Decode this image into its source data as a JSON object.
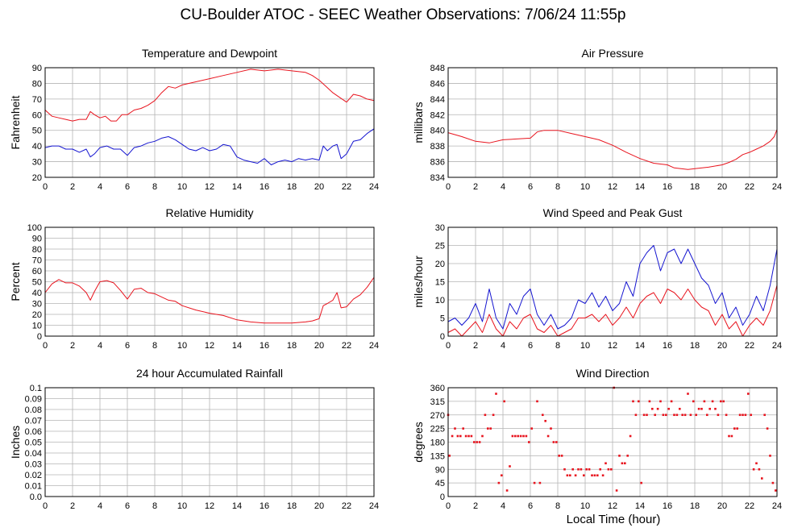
{
  "page": {
    "title": "CU-Boulder ATOC - SEEC Weather Observations: 7/06/24 11:55p",
    "x_axis_label": "Local Time (hour)"
  },
  "colors": {
    "red": "#e8141e",
    "blue": "#1515d0",
    "grid": "#b4b4b4"
  },
  "chart_data": [
    {
      "id": "temp",
      "type": "line",
      "title": "Temperature and Dewpoint",
      "xlabel": "",
      "ylabel": "Fahrenheit",
      "xlim": [
        0,
        24
      ],
      "ylim": [
        20,
        90
      ],
      "x_ticks": [
        0,
        2,
        4,
        6,
        8,
        10,
        12,
        14,
        16,
        18,
        20,
        22,
        24
      ],
      "y_ticks": [
        20,
        30,
        40,
        50,
        60,
        70,
        80,
        90
      ],
      "grid": true,
      "series": [
        {
          "color": "#e8141e",
          "x": [
            0,
            0.5,
            1,
            1.5,
            2,
            2.5,
            3,
            3.3,
            3.6,
            4,
            4.4,
            4.8,
            5.2,
            5.6,
            6,
            6.5,
            7,
            7.5,
            8,
            8.5,
            9,
            9.5,
            10,
            11,
            12,
            13,
            14,
            15,
            16,
            17,
            18,
            19,
            19.5,
            20,
            20.5,
            21,
            21.5,
            22,
            22.5,
            23,
            23.5,
            24
          ],
          "y": [
            63,
            59,
            58,
            57,
            56,
            57,
            57,
            62,
            60,
            58,
            59,
            56,
            56,
            60,
            60,
            63,
            64,
            66,
            69,
            74,
            78,
            77,
            79,
            81,
            83,
            85,
            87,
            89,
            88,
            89,
            88,
            87,
            85,
            82,
            78,
            74,
            71,
            68,
            73,
            72,
            70,
            69
          ]
        },
        {
          "color": "#1515d0",
          "x": [
            0,
            0.5,
            1,
            1.5,
            2,
            2.5,
            3,
            3.3,
            3.6,
            4,
            4.5,
            5,
            5.5,
            6,
            6.5,
            7,
            7.5,
            8,
            8.5,
            9,
            9.5,
            10,
            10.5,
            11,
            11.5,
            12,
            12.5,
            13,
            13.5,
            14,
            14.5,
            15,
            15.5,
            16,
            16.5,
            17,
            17.5,
            18,
            18.5,
            19,
            19.5,
            20,
            20.3,
            20.6,
            21,
            21.3,
            21.6,
            22,
            22.5,
            23,
            23.5,
            24
          ],
          "y": [
            39,
            40,
            40,
            38,
            38,
            36,
            38,
            33,
            35,
            39,
            40,
            38,
            38,
            34,
            39,
            40,
            42,
            43,
            45,
            46,
            44,
            41,
            38,
            37,
            39,
            37,
            38,
            41,
            40,
            33,
            31,
            30,
            29,
            32,
            28,
            30,
            31,
            30,
            32,
            31,
            32,
            31,
            40,
            37,
            40,
            41,
            32,
            35,
            43,
            44,
            48,
            51
          ]
        }
      ]
    },
    {
      "id": "pressure",
      "type": "line",
      "title": "Air Pressure",
      "xlabel": "",
      "ylabel": "millibars",
      "xlim": [
        0,
        24
      ],
      "ylim": [
        834,
        848
      ],
      "x_ticks": [
        0,
        2,
        4,
        6,
        8,
        10,
        12,
        14,
        16,
        18,
        20,
        22,
        24
      ],
      "y_ticks": [
        834,
        836,
        838,
        840,
        842,
        844,
        846,
        848
      ],
      "grid": true,
      "series": [
        {
          "color": "#e8141e",
          "x": [
            0,
            1,
            2,
            3,
            4,
            5,
            6,
            6.5,
            7,
            8,
            9,
            10,
            11,
            12,
            13,
            14,
            15,
            16,
            16.5,
            17,
            17.5,
            18,
            19,
            20,
            20.5,
            21,
            21.5,
            22,
            22.5,
            23,
            23.5,
            23.8,
            24
          ],
          "y": [
            839.7,
            839.2,
            838.6,
            838.4,
            838.8,
            838.9,
            839.0,
            839.8,
            840.0,
            840.0,
            839.6,
            839.2,
            838.8,
            838.1,
            837.2,
            836.4,
            835.8,
            835.6,
            835.2,
            835.1,
            835.0,
            835.1,
            835.3,
            835.6,
            835.9,
            836.3,
            836.9,
            837.2,
            837.6,
            838.0,
            838.6,
            839.2,
            840.1
          ]
        }
      ]
    },
    {
      "id": "humidity",
      "type": "line",
      "title": "Relative Humidity",
      "xlabel": "",
      "ylabel": "Percent",
      "xlim": [
        0,
        24
      ],
      "ylim": [
        0,
        100
      ],
      "x_ticks": [
        0,
        2,
        4,
        6,
        8,
        10,
        12,
        14,
        16,
        18,
        20,
        22,
        24
      ],
      "y_ticks": [
        0,
        10,
        20,
        30,
        40,
        50,
        60,
        70,
        80,
        90,
        100
      ],
      "grid": true,
      "series": [
        {
          "color": "#e8141e",
          "x": [
            0,
            0.5,
            1,
            1.5,
            2,
            2.5,
            3,
            3.3,
            3.6,
            4,
            4.5,
            5,
            5.5,
            6,
            6.5,
            7,
            7.5,
            8,
            8.5,
            9,
            9.5,
            10,
            11,
            12,
            13,
            14,
            15,
            16,
            17,
            18,
            19,
            19.5,
            20,
            20.3,
            20.6,
            21,
            21.3,
            21.6,
            22,
            22.5,
            23,
            23.5,
            24
          ],
          "y": [
            40,
            48,
            52,
            49,
            49,
            46,
            40,
            33,
            41,
            50,
            51,
            49,
            42,
            34,
            43,
            44,
            40,
            39,
            36,
            33,
            32,
            28,
            24,
            21,
            19,
            15,
            13,
            12,
            12,
            12,
            13,
            14,
            16,
            28,
            30,
            33,
            40,
            26,
            27,
            34,
            38,
            45,
            54
          ]
        }
      ]
    },
    {
      "id": "wind",
      "type": "line",
      "title": "Wind Speed and Peak Gust",
      "xlabel": "",
      "ylabel": "miles/hour",
      "xlim": [
        0,
        24
      ],
      "ylim": [
        0,
        30
      ],
      "x_ticks": [
        0,
        2,
        4,
        6,
        8,
        10,
        12,
        14,
        16,
        18,
        20,
        22,
        24
      ],
      "y_ticks": [
        0,
        5,
        10,
        15,
        20,
        25,
        30
      ],
      "grid": true,
      "series": [
        {
          "color": "#1515d0",
          "x": [
            0,
            0.5,
            1,
            1.5,
            2,
            2.5,
            3,
            3.5,
            4,
            4.5,
            5,
            5.5,
            6,
            6.5,
            7,
            7.5,
            8,
            8.5,
            9,
            9.5,
            10,
            10.5,
            11,
            11.5,
            12,
            12.5,
            13,
            13.5,
            14,
            14.5,
            15,
            15.5,
            16,
            16.5,
            17,
            17.5,
            18,
            18.5,
            19,
            19.5,
            20,
            20.5,
            21,
            21.5,
            22,
            22.5,
            23,
            23.5,
            24
          ],
          "y": [
            4,
            5,
            3,
            5,
            9,
            4,
            13,
            5,
            2,
            9,
            6,
            11,
            13,
            6,
            3,
            6,
            2,
            3,
            5,
            10,
            9,
            12,
            8,
            11,
            7,
            9,
            15,
            11,
            20,
            23,
            25,
            18,
            23,
            24,
            20,
            24,
            20,
            16,
            14,
            9,
            12,
            5,
            8,
            3,
            6,
            11,
            7,
            14,
            24
          ]
        },
        {
          "color": "#e8141e",
          "x": [
            0,
            0.5,
            1,
            1.5,
            2,
            2.5,
            3,
            3.5,
            4,
            4.5,
            5,
            5.5,
            6,
            6.5,
            7,
            7.5,
            8,
            8.5,
            9,
            9.5,
            10,
            10.5,
            11,
            11.5,
            12,
            12.5,
            13,
            13.5,
            14,
            14.5,
            15,
            15.5,
            16,
            16.5,
            17,
            17.5,
            18,
            18.5,
            19,
            19.5,
            20,
            20.5,
            21,
            21.5,
            22,
            22.5,
            23,
            23.5,
            24
          ],
          "y": [
            1,
            2,
            0,
            2,
            4,
            1,
            6,
            2,
            0,
            4,
            2,
            5,
            6,
            2,
            1,
            3,
            0,
            1,
            2,
            5,
            5,
            6,
            4,
            6,
            3,
            5,
            8,
            5,
            9,
            11,
            12,
            9,
            13,
            12,
            10,
            13,
            10,
            8,
            7,
            3,
            6,
            2,
            4,
            0,
            3,
            5,
            3,
            7,
            14
          ]
        }
      ]
    },
    {
      "id": "rain",
      "type": "line",
      "title": "24 hour Accumulated Rainfall",
      "xlabel": "",
      "ylabel": "Inches",
      "xlim": [
        0,
        24
      ],
      "ylim": [
        0,
        0.1
      ],
      "x_ticks": [
        0,
        2,
        4,
        6,
        8,
        10,
        12,
        14,
        16,
        18,
        20,
        22,
        24
      ],
      "y_ticks": [
        "0.0",
        "0.01",
        "0.02",
        "0.03",
        "0.04",
        "0.05",
        "0.06",
        "0.07",
        "0.08",
        "0.09",
        "0.1"
      ],
      "grid": true,
      "series": [
        {
          "color": "#e8141e",
          "x": [
            0,
            24
          ],
          "y": [
            0,
            0
          ]
        }
      ]
    },
    {
      "id": "direction",
      "type": "scatter",
      "title": "Wind Direction",
      "xlabel": "Local Time (hour)",
      "ylabel": "degrees",
      "xlim": [
        0,
        24
      ],
      "ylim": [
        0,
        360
      ],
      "x_ticks": [
        0,
        2,
        4,
        6,
        8,
        10,
        12,
        14,
        16,
        18,
        20,
        22,
        24
      ],
      "y_ticks": [
        0,
        45,
        90,
        135,
        180,
        225,
        270,
        315,
        360
      ],
      "grid": true,
      "series": [
        {
          "color": "#e8141e",
          "x": [
            0,
            0.1,
            0.3,
            0.5,
            0.7,
            0.9,
            1.1,
            1.3,
            1.5,
            1.7,
            1.9,
            2.1,
            2.3,
            2.5,
            2.7,
            2.9,
            3.1,
            3.3,
            3.5,
            3.7,
            3.9,
            4.1,
            4.3,
            4.5,
            4.7,
            4.9,
            5.1,
            5.3,
            5.5,
            5.7,
            5.9,
            6.1,
            6.3,
            6.5,
            6.7,
            6.9,
            7.1,
            7.3,
            7.5,
            7.7,
            7.9,
            8.1,
            8.3,
            8.5,
            8.7,
            8.9,
            9.1,
            9.3,
            9.5,
            9.7,
            9.9,
            10.1,
            10.3,
            10.5,
            10.7,
            10.9,
            11.1,
            11.3,
            11.5,
            11.7,
            11.9,
            12.1,
            12.3,
            12.5,
            12.7,
            12.9,
            13.1,
            13.3,
            13.5,
            13.7,
            13.9,
            14.1,
            14.3,
            14.5,
            14.7,
            14.9,
            15.1,
            15.3,
            15.5,
            15.7,
            15.9,
            16.1,
            16.3,
            16.5,
            16.7,
            16.9,
            17.1,
            17.3,
            17.5,
            17.7,
            17.9,
            18.1,
            18.3,
            18.5,
            18.7,
            18.9,
            19.1,
            19.3,
            19.5,
            19.7,
            19.9,
            20.1,
            20.3,
            20.5,
            20.7,
            20.9,
            21.1,
            21.3,
            21.5,
            21.7,
            21.9,
            22.1,
            22.3,
            22.5,
            22.7,
            22.9,
            23.1,
            23.3,
            23.5,
            23.7,
            23.9
          ],
          "y": [
            270,
            135,
            200,
            225,
            200,
            200,
            225,
            200,
            200,
            200,
            180,
            180,
            180,
            200,
            270,
            225,
            225,
            270,
            340,
            45,
            70,
            315,
            20,
            100,
            200,
            200,
            200,
            200,
            200,
            200,
            180,
            225,
            45,
            315,
            45,
            270,
            250,
            200,
            225,
            180,
            180,
            135,
            135,
            90,
            70,
            70,
            90,
            70,
            90,
            90,
            70,
            90,
            90,
            70,
            70,
            70,
            90,
            70,
            110,
            90,
            90,
            360,
            20,
            135,
            110,
            110,
            135,
            200,
            315,
            270,
            315,
            45,
            270,
            270,
            315,
            290,
            270,
            290,
            315,
            270,
            270,
            290,
            315,
            270,
            270,
            290,
            270,
            270,
            340,
            270,
            315,
            270,
            290,
            290,
            315,
            270,
            290,
            315,
            290,
            270,
            315,
            315,
            270,
            200,
            200,
            225,
            225,
            270,
            270,
            270,
            340,
            270,
            90,
            110,
            90,
            60,
            270,
            225,
            135,
            45,
            20
          ]
        }
      ]
    }
  ]
}
